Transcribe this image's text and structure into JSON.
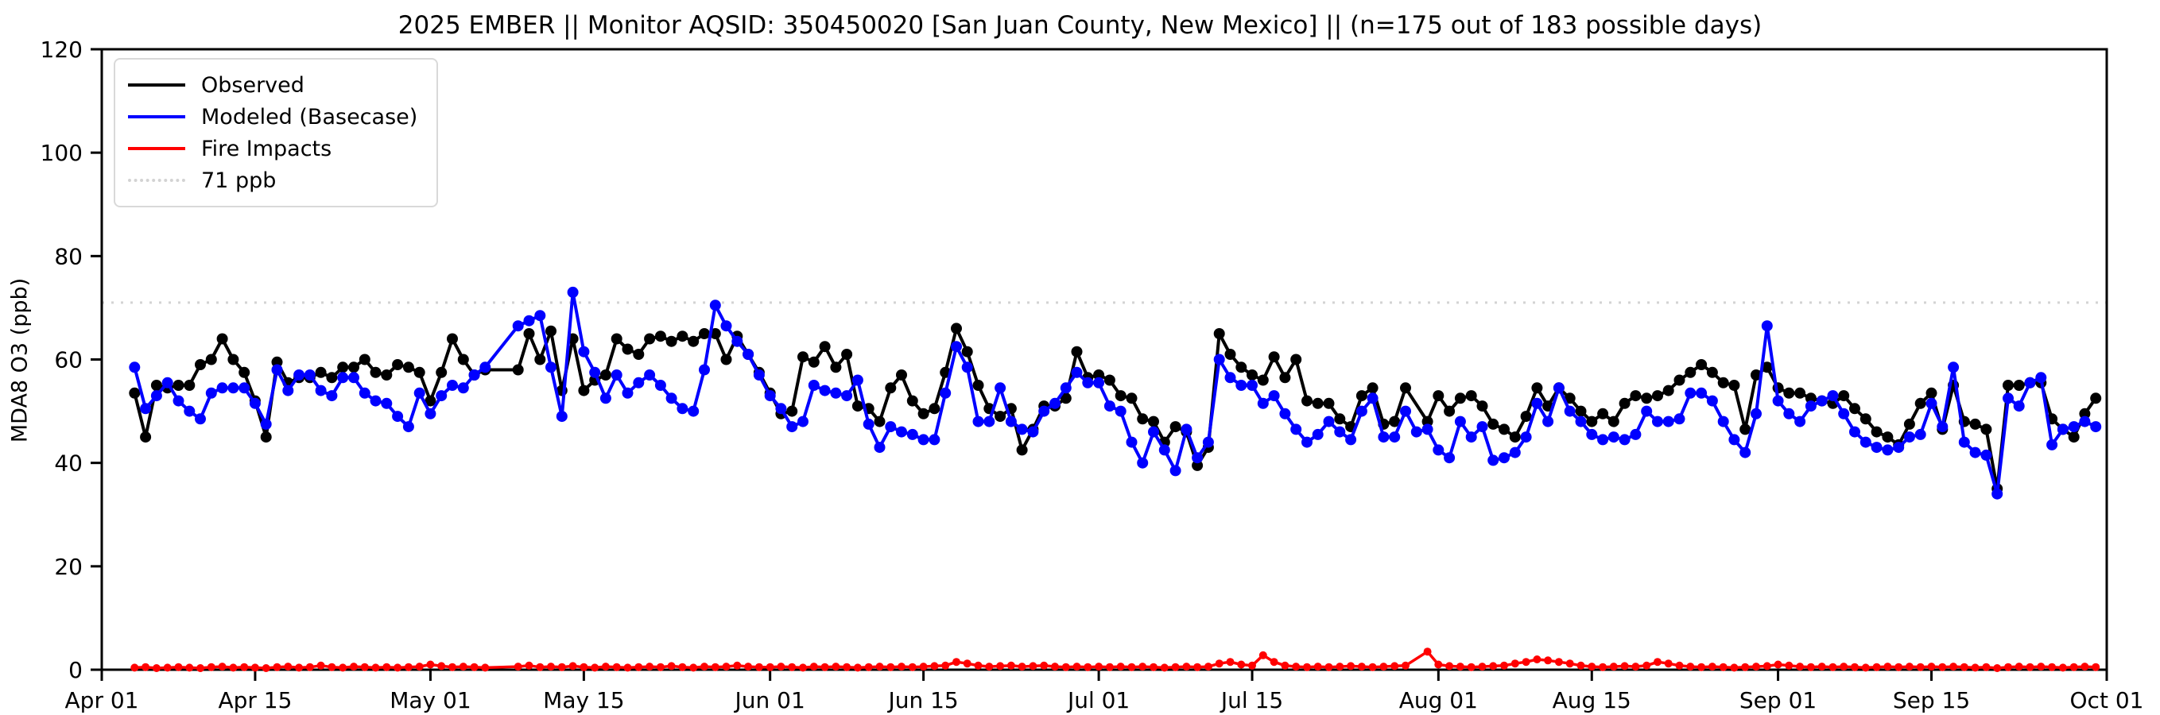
{
  "title": "2025 EMBER || Monitor AQSID: 350450020 [San Juan County, New Mexico] || (n=175 out of 183 possible days)",
  "colors": {
    "observed": "#000000",
    "modeled": "#0000ff",
    "fire": "#ff0000",
    "threshold": "#d3d3d3",
    "axis": "#000000"
  },
  "legend": {
    "items": [
      {
        "label": "Observed",
        "color": "#000000",
        "style": "solid"
      },
      {
        "label": "Modeled (Basecase)",
        "color": "#0000ff",
        "style": "solid"
      },
      {
        "label": "Fire Impacts",
        "color": "#ff0000",
        "style": "solid"
      },
      {
        "label": "71 ppb",
        "color": "#d3d3d3",
        "style": "dotted"
      }
    ]
  },
  "chart_data": {
    "type": "line",
    "title": "2025 EMBER || Monitor AQSID: 350450020 [San Juan County, New Mexico] || (n=175 out of 183 possible days)",
    "xlabel": "",
    "ylabel": "MDA8 O3 (ppb)",
    "ylim": [
      0,
      120
    ],
    "xlim_days": [
      0,
      183
    ],
    "grid": false,
    "legend_position": "upper-left",
    "threshold": {
      "value": 71,
      "label": "71 ppb"
    },
    "y_ticks": [
      0,
      20,
      40,
      60,
      80,
      100,
      120
    ],
    "x_ticks": [
      {
        "label": "Apr 01",
        "day": 0
      },
      {
        "label": "Apr 15",
        "day": 14
      },
      {
        "label": "May 01",
        "day": 30
      },
      {
        "label": "May 15",
        "day": 44
      },
      {
        "label": "Jun 01",
        "day": 61
      },
      {
        "label": "Jun 15",
        "day": 75
      },
      {
        "label": "Jul 01",
        "day": 91
      },
      {
        "label": "Jul 15",
        "day": 105
      },
      {
        "label": "Aug 01",
        "day": 122
      },
      {
        "label": "Aug 15",
        "day": 136
      },
      {
        "label": "Sep 01",
        "day": 153
      },
      {
        "label": "Sep 15",
        "day": 167
      },
      {
        "label": "Oct 01",
        "day": 183
      }
    ],
    "start_date": "Apr 01",
    "cadence": "daily",
    "series": [
      {
        "name": "Observed",
        "color": "#000000",
        "values": [
          null,
          null,
          null,
          53.5,
          45,
          55,
          54.5,
          55,
          55,
          59,
          60,
          64,
          60,
          57.5,
          52,
          45,
          59.5,
          55.5,
          56.5,
          56.5,
          57.5,
          56.5,
          58.5,
          58.5,
          60,
          57.5,
          57,
          59,
          58.5,
          57.5,
          52,
          57.5,
          64,
          60,
          57,
          58,
          null,
          null,
          58,
          65,
          60,
          65.5,
          54,
          64,
          54,
          56,
          57,
          64,
          62,
          61,
          64,
          64.5,
          63.5,
          64.5,
          63.5,
          65,
          65,
          60,
          64.5,
          61,
          57.5,
          53.5,
          49.5,
          50,
          60.5,
          59.5,
          62.5,
          58.5,
          61,
          51,
          50.5,
          48,
          54.5,
          57,
          52,
          49.5,
          50.5,
          57.5,
          66,
          61.5,
          55,
          50.5,
          49,
          50.5,
          42.5,
          46.5,
          51,
          51,
          52.5,
          61.5,
          56.5,
          57,
          56,
          53,
          52.5,
          48.5,
          48,
          44,
          47,
          46,
          39.5,
          43,
          65,
          61,
          58.5,
          57,
          56,
          60.5,
          56.5,
          60,
          52,
          51.5,
          51.5,
          48.5,
          47,
          53,
          54.5,
          47.5,
          48,
          54.5,
          null,
          48,
          53,
          50,
          52.5,
          53,
          51,
          47.5,
          46.5,
          45,
          49,
          54.5,
          51,
          54.5,
          52.5,
          50,
          48,
          49.5,
          48,
          51.5,
          53,
          52.5,
          53,
          54,
          56,
          57.5,
          59,
          57.5,
          55.5,
          55,
          46.5,
          57,
          58.5,
          54.5,
          53.5,
          53.5,
          52.5,
          52,
          51.5,
          53,
          50.5,
          48.5,
          46,
          45,
          43.5,
          47.5,
          51.5,
          53.5,
          46.5,
          55,
          48,
          47.5,
          46.5,
          35,
          55,
          55,
          55.5,
          55.5,
          48.5,
          46.5,
          45,
          49.5,
          52.5
        ]
      },
      {
        "name": "Modeled (Basecase)",
        "color": "#0000ff",
        "values": [
          null,
          null,
          null,
          58.5,
          50.5,
          53,
          55.5,
          52,
          50,
          48.5,
          53.5,
          54.5,
          54.5,
          54.5,
          51.5,
          47.5,
          58,
          54,
          57,
          57,
          54,
          53,
          56.5,
          56.5,
          53.5,
          52,
          51.5,
          49,
          47,
          53.5,
          49.5,
          53,
          55,
          54.5,
          57,
          58.5,
          null,
          null,
          66.5,
          67.5,
          68.5,
          58.5,
          49,
          73,
          61.5,
          57.5,
          52.5,
          57,
          53.5,
          55.5,
          57,
          55,
          52.5,
          50.5,
          50,
          58,
          70.5,
          66.5,
          63.5,
          61,
          57,
          53,
          50.5,
          47,
          48,
          55,
          54,
          53.5,
          53,
          56,
          47.5,
          43,
          47,
          46,
          45.5,
          44.5,
          44.5,
          53.5,
          62.5,
          58.5,
          48,
          48,
          54.5,
          48,
          46.5,
          46,
          50,
          51.5,
          54.5,
          57.5,
          55.5,
          55.5,
          51,
          50,
          44,
          40,
          46,
          42.5,
          38.5,
          46.5,
          41,
          44,
          60,
          56.5,
          55,
          55,
          51.5,
          53,
          49.5,
          46.5,
          44,
          45.5,
          48,
          46,
          44.5,
          50,
          52.5,
          45,
          45,
          50,
          46,
          46.5,
          42.5,
          41,
          48,
          45,
          47,
          40.5,
          41,
          42,
          45,
          51.5,
          48,
          54.5,
          50,
          48,
          45.5,
          44.5,
          45,
          44.5,
          45.5,
          50,
          48,
          48,
          48.5,
          53.5,
          53.5,
          52,
          48,
          44.5,
          42,
          49.5,
          66.5,
          52,
          49.5,
          48,
          51,
          52,
          53,
          49.5,
          46,
          44,
          43,
          42.5,
          43,
          45,
          45.5,
          51.5,
          47,
          58.5,
          44,
          42,
          41.5,
          34,
          52.5,
          51,
          55.5,
          56.5,
          43.5,
          46.5,
          47,
          48,
          47
        ]
      },
      {
        "name": "Fire Impacts",
        "color": "#ff0000",
        "values": [
          null,
          null,
          null,
          0.4,
          0.5,
          0.3,
          0.4,
          0.5,
          0.4,
          0.3,
          0.5,
          0.6,
          0.4,
          0.5,
          0.4,
          0.3,
          0.5,
          0.6,
          0.4,
          0.5,
          0.8,
          0.5,
          0.4,
          0.6,
          0.5,
          0.4,
          0.5,
          0.4,
          0.5,
          0.6,
          1.0,
          0.7,
          0.5,
          0.6,
          0.5,
          0.4,
          null,
          null,
          0.6,
          0.8,
          0.5,
          0.6,
          0.5,
          0.7,
          0.5,
          0.4,
          0.6,
          0.5,
          0.4,
          0.5,
          0.6,
          0.5,
          0.7,
          0.5,
          0.4,
          0.6,
          0.5,
          0.6,
          0.8,
          0.6,
          0.5,
          0.5,
          0.6,
          0.5,
          0.4,
          0.6,
          0.5,
          0.6,
          0.5,
          0.4,
          0.5,
          0.6,
          0.5,
          0.6,
          0.5,
          0.6,
          0.7,
          0.8,
          1.5,
          1.2,
          0.8,
          0.6,
          0.7,
          0.8,
          0.6,
          0.7,
          0.8,
          0.6,
          0.5,
          0.6,
          0.5,
          0.6,
          0.5,
          0.6,
          0.5,
          0.6,
          0.5,
          0.4,
          0.5,
          0.6,
          0.5,
          0.6,
          1.2,
          1.5,
          1.0,
          0.8,
          2.8,
          1.5,
          0.8,
          0.6,
          0.5,
          0.6,
          0.5,
          0.6,
          0.7,
          0.6,
          0.5,
          0.6,
          0.7,
          0.8,
          null,
          3.5,
          1.0,
          0.7,
          0.6,
          0.5,
          0.6,
          0.7,
          0.8,
          1.2,
          1.5,
          2.0,
          1.8,
          1.5,
          1.2,
          0.8,
          0.6,
          0.5,
          0.6,
          0.7,
          0.6,
          0.8,
          1.5,
          1.2,
          0.8,
          0.6,
          0.5,
          0.6,
          0.5,
          0.4,
          0.5,
          0.6,
          0.7,
          1.0,
          0.8,
          0.6,
          0.5,
          0.6,
          0.5,
          0.6,
          0.5,
          0.4,
          0.5,
          0.6,
          0.5,
          0.6,
          0.5,
          0.6,
          0.5,
          0.6,
          0.5,
          0.4,
          0.5,
          0.3,
          0.5,
          0.6,
          0.5,
          0.6,
          0.5,
          0.4,
          0.5,
          0.6,
          0.5
        ]
      }
    ]
  },
  "axes": {
    "y_label": "MDA8 O3 (ppb)"
  }
}
